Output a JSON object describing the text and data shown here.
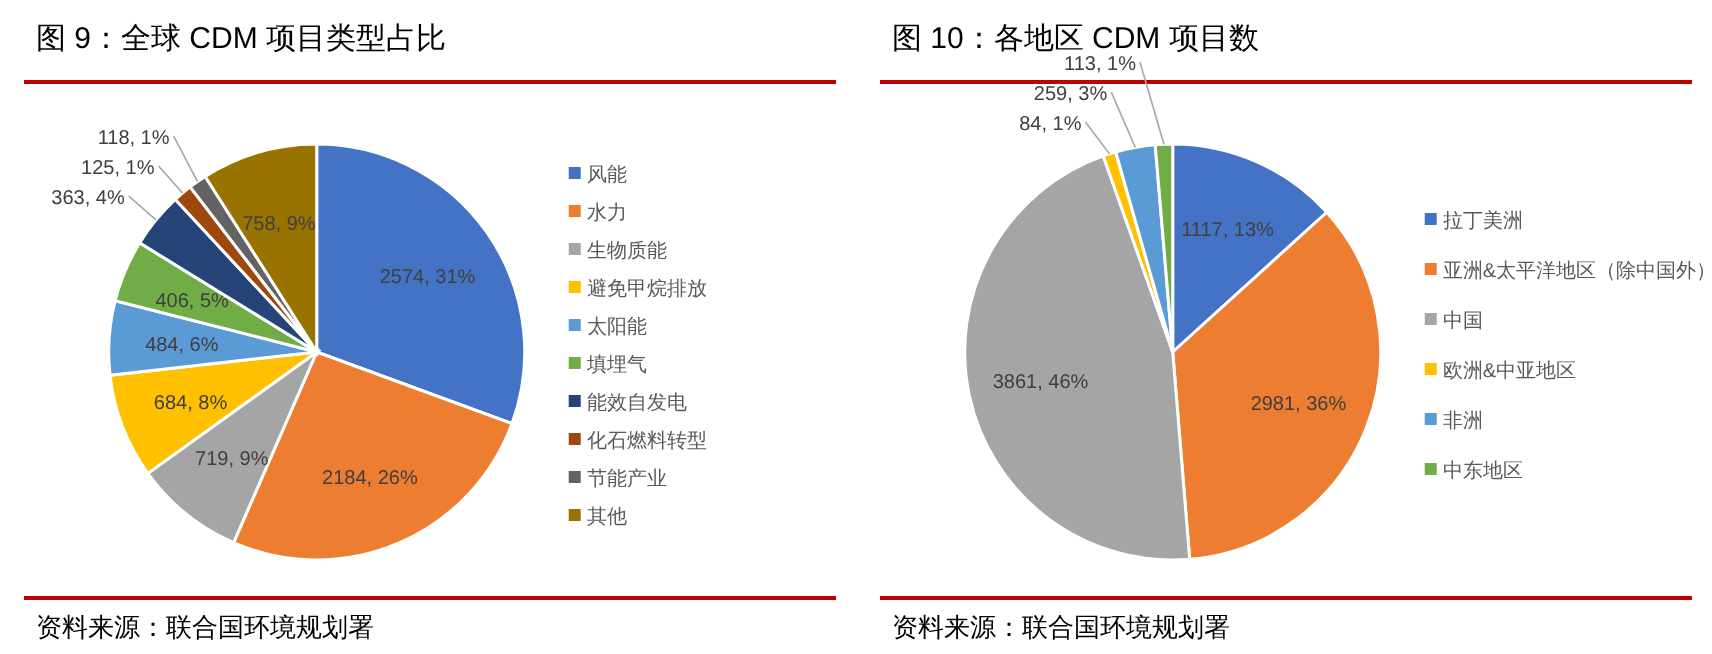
{
  "chart_data": [
    {
      "type": "pie",
      "title": "图 9：全球 CDM 项目类型占比",
      "categories": [
        "风能",
        "水力",
        "生物质能",
        "避免甲烷排放",
        "太阳能",
        "填埋气",
        "能效自发电",
        "化石燃料转型",
        "节能产业",
        "其他"
      ],
      "values": [
        2574,
        2184,
        719,
        684,
        484,
        406,
        363,
        125,
        118,
        758
      ],
      "colors": [
        "#4472c4",
        "#ed7d31",
        "#a5a5a5",
        "#ffc000",
        "#5b9bd5",
        "#70ad47",
        "#264478",
        "#9e480e",
        "#636363",
        "#997300"
      ],
      "value_labels": [
        "2574, 31%",
        "2184, 26%",
        "719, 9%",
        "684, 8%",
        "484, 6%",
        "406, 5%",
        "363, 4%",
        "125, 1%",
        "118, 1%",
        "758, 9%"
      ],
      "legend": "right",
      "annotations": [
        "资料来源：联合国环境规划署"
      ]
    },
    {
      "type": "pie",
      "title": "图 10：各地区 CDM 项目数",
      "categories": [
        "拉丁美洲",
        "亚洲&太平洋地区（除中国外）",
        "中国",
        "欧洲&中亚地区",
        "非洲",
        "中东地区"
      ],
      "values": [
        1117,
        2981,
        3861,
        84,
        259,
        113
      ],
      "colors": [
        "#4472c4",
        "#ed7d31",
        "#a5a5a5",
        "#ffc000",
        "#5b9bd5",
        "#70ad47"
      ],
      "value_labels": [
        "1117, 13%",
        "2981, 36%",
        "3861, 46%",
        "84, 1%",
        "259, 3%",
        "113, 1%"
      ],
      "legend": "right",
      "annotations": [
        "资料来源：联合国环境规划署"
      ]
    }
  ]
}
